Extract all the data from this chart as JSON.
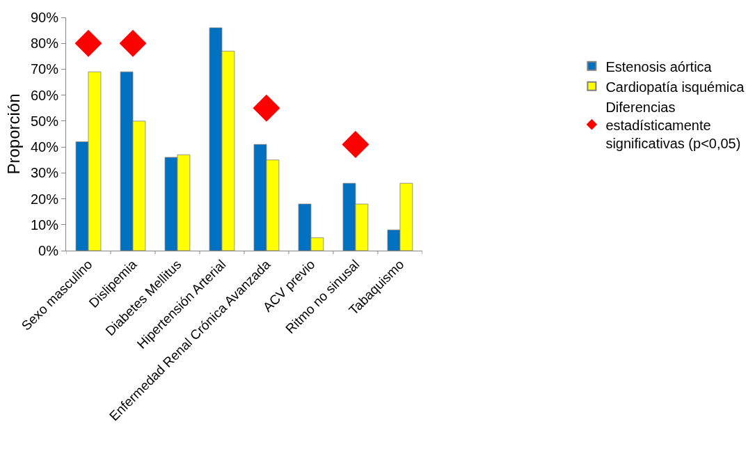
{
  "chart_data": {
    "type": "bar",
    "ylabel": "Proporción",
    "categories": [
      "Sexo masculino",
      "Dislipemia",
      "Diabetes Mellitus",
      "Hipertensión Arterial",
      "Enfermedad Renal Crónica Avanzada",
      "ACV previo",
      "Ritmo no sinusal",
      "Tabaquismo"
    ],
    "series": [
      {
        "name": "Estenosis aórtica",
        "color": "#0070c0",
        "values": [
          42,
          69,
          36,
          86,
          41,
          18,
          26,
          8
        ]
      },
      {
        "name": "Cardiopatía isquémica",
        "color": "#ffff00",
        "values": [
          69,
          50,
          37,
          77,
          35,
          5,
          18,
          26
        ]
      },
      {
        "name": "Diferencias estadísticamente significativas (p<0,05)",
        "type": "scatter",
        "marker": "diamond",
        "color": "#ff0000",
        "values": [
          80,
          80,
          null,
          null,
          55,
          null,
          41,
          null
        ]
      }
    ],
    "ylim": [
      0,
      90
    ],
    "yticks": [
      {
        "value": 0,
        "label": "0%"
      },
      {
        "value": 10,
        "label": "10%"
      },
      {
        "value": 20,
        "label": "20%"
      },
      {
        "value": 30,
        "label": "30%"
      },
      {
        "value": 40,
        "label": "40%"
      },
      {
        "value": 50,
        "label": "50%"
      },
      {
        "value": 60,
        "label": "60%"
      },
      {
        "value": 70,
        "label": "70%"
      },
      {
        "value": 80,
        "label": "80%"
      },
      {
        "value": 90,
        "label": "90%"
      }
    ],
    "legend": "right"
  }
}
